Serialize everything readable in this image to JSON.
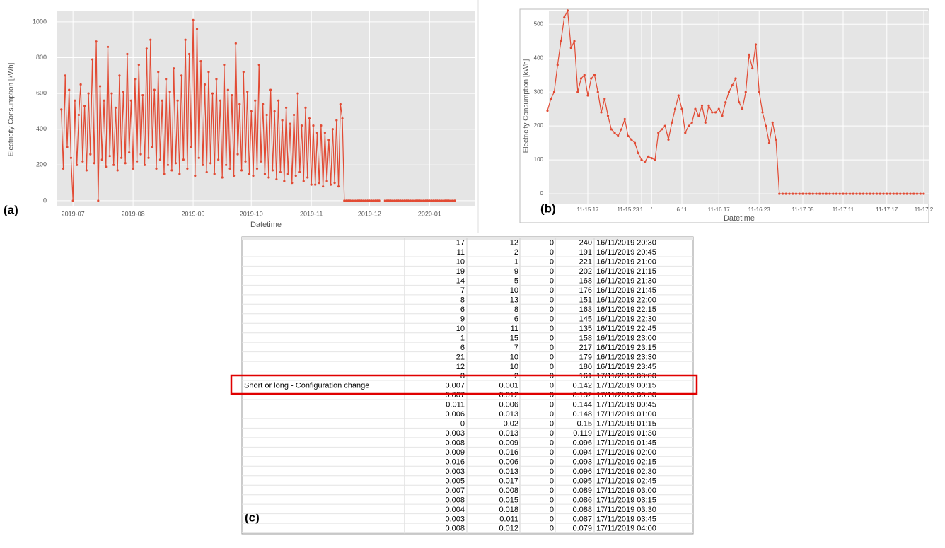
{
  "chart_data": [
    {
      "type": "line",
      "xlabel": "Datetime",
      "ylabel": "Electricity Consumption [kWh]",
      "color": "#e24a33",
      "markers": true,
      "grid": true,
      "ylim": [
        -32,
        1063
      ],
      "yticks": [
        0,
        200,
        400,
        600,
        800,
        1000
      ],
      "categories": [
        null,
        null,
        null,
        null,
        null,
        null,
        null,
        "2019-07",
        null,
        null,
        null,
        null,
        null,
        null,
        null,
        null,
        null,
        null,
        null,
        null,
        null,
        null,
        null,
        null,
        null,
        null,
        null,
        null,
        null,
        null,
        null,
        null,
        null,
        null,
        null,
        null,
        null,
        null,
        "2019-08",
        null,
        null,
        null,
        null,
        null,
        null,
        null,
        null,
        null,
        null,
        null,
        null,
        null,
        null,
        null,
        null,
        null,
        null,
        null,
        null,
        null,
        null,
        null,
        null,
        null,
        null,
        null,
        null,
        null,
        null,
        "2019-09",
        null,
        null,
        null,
        null,
        null,
        null,
        null,
        null,
        null,
        null,
        null,
        null,
        null,
        null,
        null,
        null,
        null,
        null,
        null,
        null,
        null,
        null,
        null,
        null,
        null,
        null,
        null,
        null,
        null,
        "2019-10",
        null,
        null,
        null,
        null,
        null,
        null,
        null,
        null,
        null,
        null,
        null,
        null,
        null,
        null,
        null,
        null,
        null,
        null,
        null,
        null,
        null,
        null,
        null,
        null,
        null,
        null,
        null,
        null,
        null,
        null,
        "2019-11",
        null,
        null,
        null,
        null,
        null,
        null,
        null,
        null,
        null,
        null,
        null,
        null,
        null,
        null,
        null,
        null,
        null,
        null,
        null,
        null,
        null,
        null,
        null,
        null,
        null,
        null,
        null,
        null,
        null,
        "2019-12",
        null,
        null,
        null,
        null,
        null,
        null,
        null,
        null,
        null,
        null,
        null,
        null,
        null,
        null,
        null,
        null,
        null,
        null,
        null,
        null,
        null,
        null,
        null,
        null,
        null,
        null,
        null,
        null,
        null,
        null,
        "2020-01",
        null,
        null,
        null,
        null,
        null,
        null,
        null,
        null,
        null,
        null,
        null,
        null,
        null
      ],
      "values": [
        null,
        510,
        180,
        700,
        300,
        620,
        240,
        0,
        560,
        200,
        480,
        650,
        220,
        530,
        170,
        600,
        260,
        790,
        210,
        890,
        0,
        640,
        230,
        560,
        190,
        860,
        250,
        600,
        200,
        520,
        170,
        700,
        240,
        610,
        210,
        820,
        270,
        560,
        180,
        680,
        220,
        760,
        260,
        590,
        200,
        850,
        240,
        900,
        300,
        620,
        180,
        720,
        230,
        560,
        150,
        680,
        200,
        610,
        170,
        740,
        210,
        560,
        150,
        700,
        230,
        900,
        180,
        820,
        300,
        1010,
        140,
        960,
        240,
        780,
        200,
        650,
        160,
        720,
        210,
        600,
        150,
        680,
        230,
        560,
        130,
        760,
        200,
        620,
        180,
        590,
        140,
        880,
        260,
        540,
        170,
        720,
        220,
        610,
        150,
        500,
        140,
        560,
        180,
        760,
        220,
        540,
        150,
        480,
        130,
        620,
        170,
        500,
        120,
        560,
        160,
        450,
        110,
        520,
        150,
        430,
        100,
        480,
        140,
        600,
        160,
        420,
        110,
        520,
        130,
        460,
        90,
        420,
        90,
        380,
        100,
        420,
        80,
        380,
        110,
        340,
        90,
        400,
        100,
        450,
        80,
        540,
        460,
        0,
        0,
        0,
        0,
        0,
        0,
        0,
        0,
        0,
        0,
        0,
        0,
        0,
        0,
        0,
        0,
        0,
        0,
        0,
        null,
        null,
        0,
        0,
        0,
        0,
        0,
        0,
        0,
        0,
        0,
        0,
        0,
        0,
        0,
        0,
        0,
        0,
        0,
        0,
        0,
        0,
        0,
        0,
        0,
        0,
        0,
        0,
        0,
        0,
        0,
        0,
        0,
        0,
        0,
        0,
        0,
        0,
        0
      ]
    },
    {
      "type": "line",
      "xlabel": "Datetime",
      "ylabel": "Electricity Consumption [kWh]",
      "color": "#e24a33",
      "markers": true,
      "grid": true,
      "ylim": [
        -29,
        540
      ],
      "yticks": [
        0,
        100,
        200,
        300,
        400,
        500
      ],
      "categories": [
        null,
        null,
        null,
        null,
        null,
        null,
        null,
        null,
        null,
        null,
        null,
        null,
        "11-15 17",
        null,
        null,
        null,
        null,
        null,
        null,
        null,
        null,
        null,
        null,
        null,
        "11-15 23",
        null,
        null,
        null,
        "1",
        null,
        null,
        "'",
        null,
        null,
        null,
        null,
        null,
        null,
        null,
        null,
        "6 11",
        null,
        null,
        null,
        null,
        null,
        null,
        null,
        null,
        null,
        null,
        "11-16 17",
        null,
        null,
        null,
        null,
        null,
        null,
        null,
        null,
        null,
        null,
        null,
        "11-16 23",
        null,
        null,
        null,
        null,
        null,
        null,
        null,
        null,
        null,
        null,
        null,
        null,
        "11-17 05",
        null,
        null,
        null,
        null,
        null,
        null,
        null,
        null,
        null,
        null,
        null,
        "11-17 11",
        null,
        null,
        null,
        null,
        null,
        null,
        null,
        null,
        null,
        null,
        null,
        null,
        "11-17 17",
        null,
        null,
        null,
        null,
        null,
        null,
        null,
        null,
        null,
        null,
        "11-17 2"
      ],
      "values": [
        245,
        280,
        300,
        380,
        450,
        520,
        540,
        430,
        450,
        300,
        340,
        350,
        290,
        340,
        350,
        300,
        240,
        280,
        230,
        190,
        180,
        170,
        190,
        220,
        170,
        160,
        150,
        120,
        100,
        95,
        110,
        105,
        100,
        180,
        190,
        200,
        160,
        210,
        250,
        290,
        250,
        180,
        200,
        210,
        250,
        230,
        260,
        210,
        260,
        240,
        240,
        250,
        230,
        270,
        300,
        320,
        340,
        270,
        250,
        300,
        410,
        370,
        440,
        300,
        240,
        200,
        150,
        210,
        160,
        0,
        0,
        0,
        0,
        0,
        0,
        0,
        0,
        0,
        0,
        0,
        0,
        0,
        0,
        0,
        0,
        0,
        0,
        0,
        0,
        0,
        0,
        0,
        0,
        0,
        0,
        0,
        0,
        0,
        0,
        0,
        0,
        0,
        0,
        0,
        0,
        0,
        0,
        0,
        0,
        0,
        0,
        0,
        0
      ]
    }
  ],
  "panels": [
    "(a)",
    "(b)",
    "(c)"
  ],
  "table": {
    "annotation": "Short or long - Configuration change",
    "rows": [
      [
        17,
        12,
        0,
        240,
        "16/11/2019 20:30"
      ],
      [
        11,
        2,
        0,
        191,
        "16/11/2019 20:45"
      ],
      [
        10,
        1,
        0,
        221,
        "16/11/2019 21:00"
      ],
      [
        19,
        9,
        0,
        202,
        "16/11/2019 21:15"
      ],
      [
        14,
        5,
        0,
        168,
        "16/11/2019 21:30"
      ],
      [
        7,
        10,
        0,
        176,
        "16/11/2019 21:45"
      ],
      [
        8,
        13,
        0,
        151,
        "16/11/2019 22:00"
      ],
      [
        6,
        8,
        0,
        163,
        "16/11/2019 22:15"
      ],
      [
        9,
        6,
        0,
        145,
        "16/11/2019 22:30"
      ],
      [
        10,
        11,
        0,
        135,
        "16/11/2019 22:45"
      ],
      [
        1,
        15,
        0,
        158,
        "16/11/2019 23:00"
      ],
      [
        6,
        7,
        0,
        217,
        "16/11/2019 23:15"
      ],
      [
        21,
        10,
        0,
        179,
        "16/11/2019 23:30"
      ],
      [
        12,
        10,
        0,
        180,
        "16/11/2019 23:45"
      ],
      [
        8,
        2,
        0,
        161,
        "17/11/2019 00:00"
      ],
      [
        0.007,
        0.001,
        0,
        0.142,
        "17/11/2019 00:15"
      ],
      [
        0.007,
        0.012,
        0,
        0.152,
        "17/11/2019 00:30"
      ],
      [
        0.011,
        0.006,
        0,
        0.144,
        "17/11/2019 00:45"
      ],
      [
        0.006,
        0.013,
        0,
        0.148,
        "17/11/2019 01:00"
      ],
      [
        0,
        0.02,
        0,
        0.15,
        "17/11/2019 01:15"
      ],
      [
        0.003,
        0.013,
        0,
        0.119,
        "17/11/2019 01:30"
      ],
      [
        0.008,
        0.009,
        0,
        0.096,
        "17/11/2019 01:45"
      ],
      [
        0.009,
        0.016,
        0,
        0.094,
        "17/11/2019 02:00"
      ],
      [
        0.016,
        0.006,
        0,
        0.093,
        "17/11/2019 02:15"
      ],
      [
        0.003,
        0.013,
        0,
        0.096,
        "17/11/2019 02:30"
      ],
      [
        0.005,
        0.017,
        0,
        0.095,
        "17/11/2019 02:45"
      ],
      [
        0.007,
        0.008,
        0,
        0.089,
        "17/11/2019 03:00"
      ],
      [
        0.008,
        0.015,
        0,
        0.086,
        "17/11/2019 03:15"
      ],
      [
        0.004,
        0.018,
        0,
        0.088,
        "17/11/2019 03:30"
      ],
      [
        0.003,
        0.011,
        0,
        0.087,
        "17/11/2019 03:45"
      ],
      [
        0.008,
        0.012,
        0,
        0.079,
        "17/11/2019 04:00"
      ]
    ]
  }
}
